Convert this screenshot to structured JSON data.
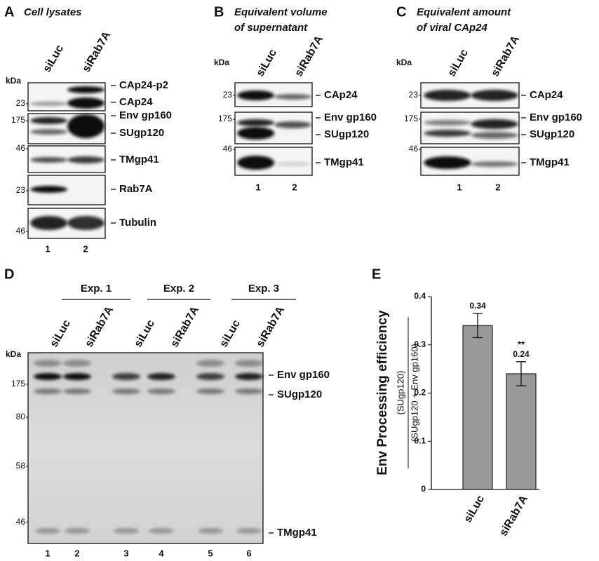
{
  "panels": [
    {
      "letter": "A",
      "title": [
        "Cell lysates"
      ],
      "lanes": [
        "siLuc",
        "siRab7A"
      ],
      "kda": "kDa",
      "markers": [
        "23",
        "175",
        "46",
        "23",
        "46"
      ],
      "bands": [
        "CAp24-p2",
        "CAp24",
        "Env gp160",
        "SUgp120",
        "TMgp41",
        "Rab7A",
        "Tubulin"
      ],
      "lane_numbers": [
        "1",
        "2"
      ]
    },
    {
      "letter": "B",
      "title": [
        "Equivalent volume",
        "of supernatant"
      ],
      "lanes": [
        "siLuc",
        "siRab7A"
      ],
      "kda": "kDa",
      "markers": [
        "23",
        "175",
        "46"
      ],
      "bands": [
        "CAp24",
        "Env gp160",
        "SUgp120",
        "TMgp41"
      ],
      "lane_numbers": [
        "1",
        "2"
      ]
    },
    {
      "letter": "C",
      "title": [
        "Equivalent amount",
        "of  viral CAp24"
      ],
      "lanes": [
        "siLuc",
        "siRab7A"
      ],
      "kda": "kDa",
      "markers": [
        "23",
        "175",
        "46"
      ],
      "bands": [
        "CAp24",
        "Env gp160",
        "SUgp120",
        "TMgp41"
      ],
      "lane_numbers": [
        "1",
        "2"
      ]
    },
    {
      "letter": "D",
      "experiments": [
        "Exp. 1",
        "Exp. 2",
        "Exp. 3"
      ],
      "lanes": [
        "siLuc",
        "siRab7A",
        "siLuc",
        "siRab7A",
        "siLuc",
        "siRab7A"
      ],
      "kda": "kDa",
      "markers": [
        "175",
        "80",
        "58",
        "46"
      ],
      "bands": [
        "Env gp160",
        "SUgp120",
        "TMgp41"
      ],
      "lane_numbers": [
        "1",
        "2",
        "3",
        "4",
        "5",
        "6"
      ]
    }
  ],
  "chart_data": {
    "type": "bar",
    "letter": "E",
    "ylabel": "Env Processing efficiency",
    "ylabel_numerator": "(SUgp120)",
    "ylabel_denominator": "(SUgp120 + Env gp160)",
    "categories": [
      "siLuc",
      "siRab7A"
    ],
    "values": [
      0.34,
      0.24
    ],
    "errors": [
      0.025,
      0.025
    ],
    "significance": [
      null,
      "**"
    ],
    "color": "#999999",
    "ylim": [
      0,
      0.4
    ],
    "yticks": [
      0,
      0.1,
      0.2,
      0.3,
      0.4
    ]
  }
}
